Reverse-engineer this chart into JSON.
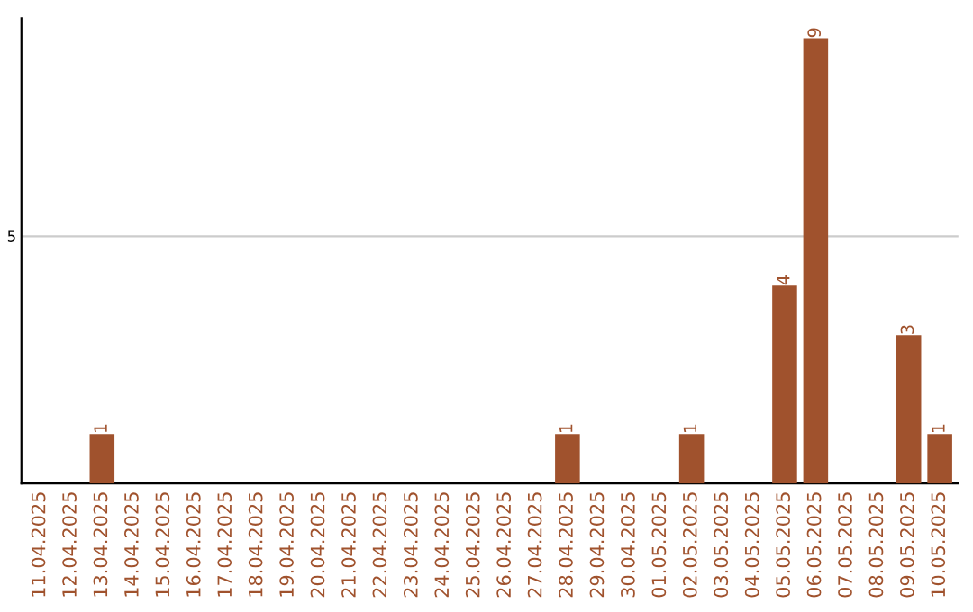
{
  "chart_data": {
    "type": "bar",
    "categories": [
      "11.04.2025",
      "12.04.2025",
      "13.04.2025",
      "14.04.2025",
      "15.04.2025",
      "16.04.2025",
      "17.04.2025",
      "18.04.2025",
      "19.04.2025",
      "20.04.2025",
      "21.04.2025",
      "22.04.2025",
      "23.04.2025",
      "24.04.2025",
      "25.04.2025",
      "26.04.2025",
      "27.04.2025",
      "28.04.2025",
      "29.04.2025",
      "30.04.2025",
      "01.05.2025",
      "02.05.2025",
      "03.05.2025",
      "04.05.2025",
      "05.05.2025",
      "06.05.2025",
      "07.05.2025",
      "08.05.2025",
      "09.05.2025",
      "10.05.2025"
    ],
    "values": [
      0,
      0,
      1,
      0,
      0,
      0,
      0,
      0,
      0,
      0,
      0,
      0,
      0,
      0,
      0,
      0,
      0,
      1,
      0,
      0,
      0,
      1,
      0,
      0,
      4,
      9,
      0,
      0,
      3,
      1
    ],
    "value_labels": [
      null,
      null,
      "1",
      null,
      null,
      null,
      null,
      null,
      null,
      null,
      null,
      null,
      null,
      null,
      null,
      null,
      null,
      "1",
      null,
      null,
      null,
      "1",
      null,
      null,
      "4",
      "9",
      null,
      null,
      "3",
      "1"
    ],
    "color": "#a0522d",
    "ylim": [
      0,
      9.4
    ],
    "yticks": [
      5
    ],
    "grid": "y",
    "legend": false
  }
}
